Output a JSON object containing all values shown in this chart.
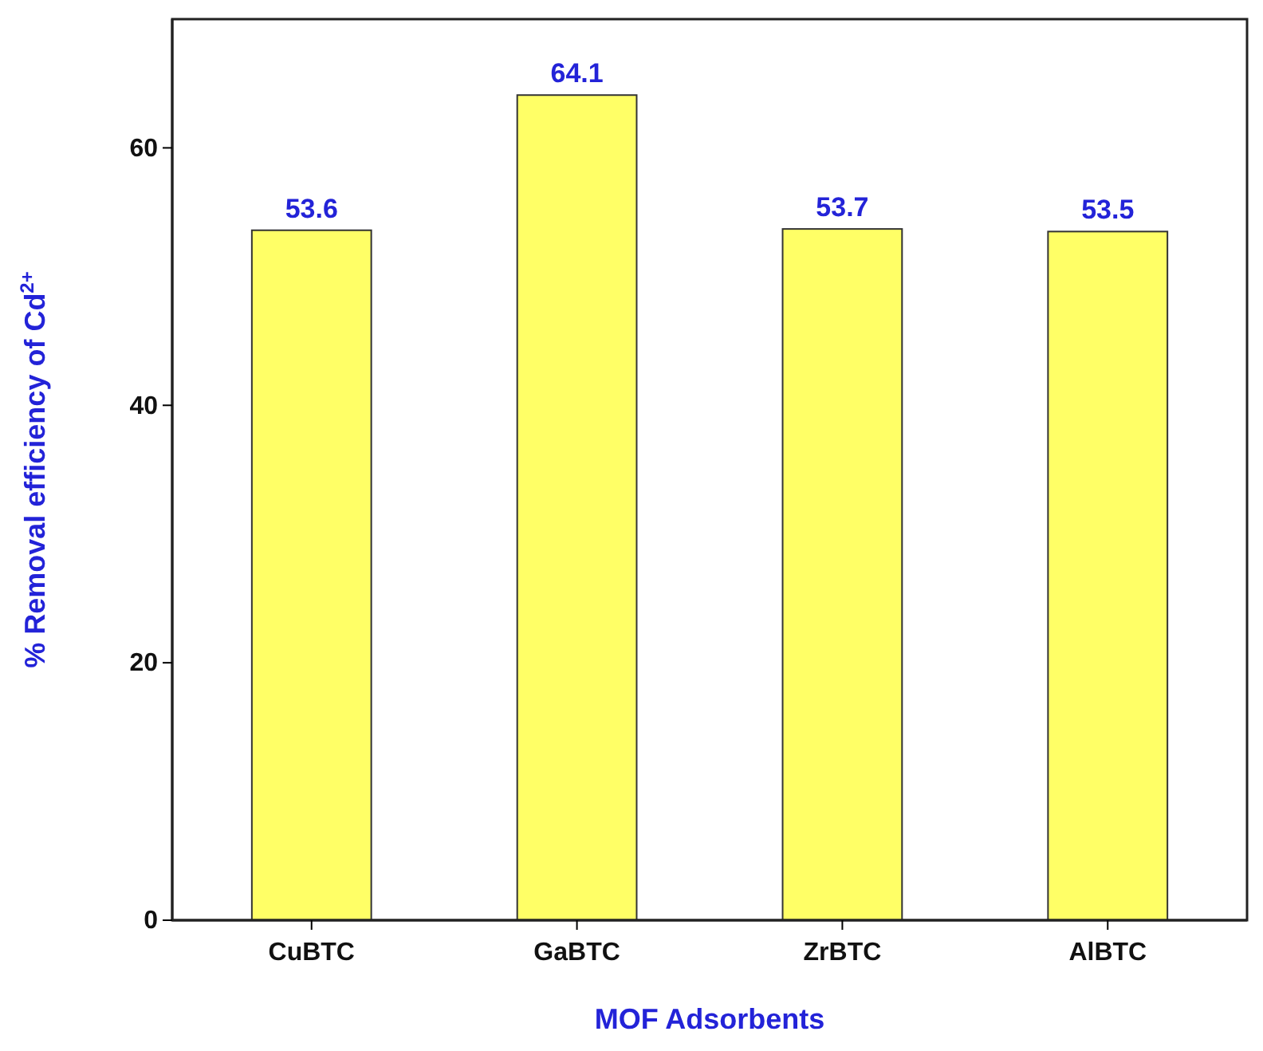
{
  "chart_data": {
    "type": "bar",
    "xlabel": "MOF Adsorbents",
    "ylabel": "% Removal efficiency of Cd$^{2+}$",
    "categories": [
      "CuBTC",
      "GaBTC",
      "ZrBTC",
      "AlBTC"
    ],
    "values": [
      53.6,
      64.1,
      53.7,
      53.5
    ],
    "color": "#ffff66",
    "ylim": [
      0,
      70
    ],
    "yticks": [
      0,
      20,
      40,
      60
    ],
    "data_labels": true,
    "grid": false
  }
}
